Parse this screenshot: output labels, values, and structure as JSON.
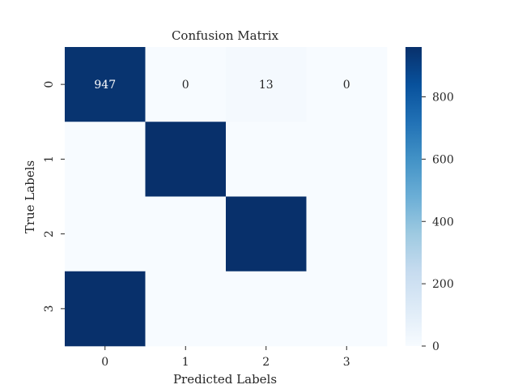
{
  "chart_data": {
    "type": "heatmap",
    "title": "Confusion Matrix",
    "xlabel": "Predicted Labels",
    "ylabel": "True Labels",
    "x_categories": [
      "0",
      "1",
      "2",
      "3"
    ],
    "y_categories": [
      "0",
      "1",
      "2",
      "3"
    ],
    "values": [
      [
        947,
        0,
        13,
        0
      ],
      [
        0,
        960,
        0,
        0
      ],
      [
        0,
        0,
        960,
        0
      ],
      [
        960,
        0,
        0,
        0
      ]
    ],
    "annotations": [
      [
        "947",
        "0",
        "13",
        "0"
      ],
      [
        null,
        null,
        null,
        null
      ],
      [
        null,
        null,
        null,
        null
      ],
      [
        null,
        null,
        null,
        null
      ]
    ],
    "colormap": "Blues",
    "colorbar": {
      "range": [
        0,
        960
      ],
      "ticks": [
        0,
        200,
        400,
        600,
        800
      ],
      "tick_labels": [
        "0",
        "200",
        "400",
        "600",
        "800"
      ]
    },
    "grid": false,
    "legend": "none"
  }
}
